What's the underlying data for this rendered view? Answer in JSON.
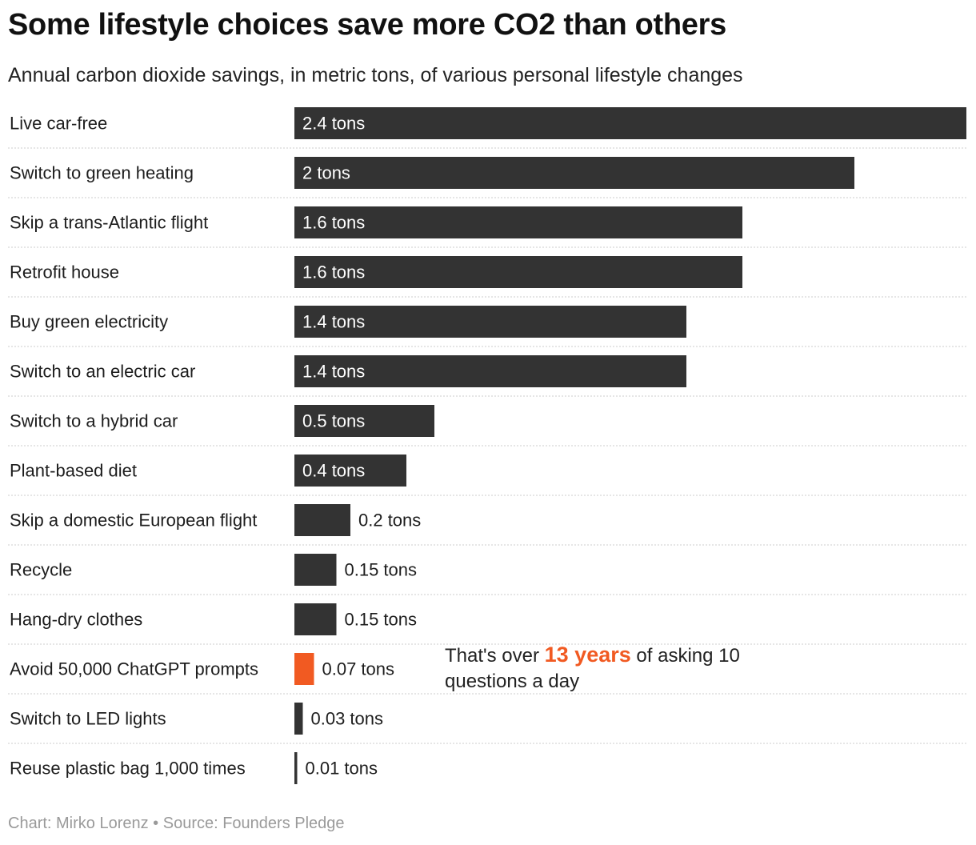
{
  "chart_data": {
    "type": "bar",
    "orientation": "horizontal",
    "title": "Some lifestyle choices save more CO2 than others",
    "subtitle": "Annual carbon dioxide savings, in metric tons, of various personal lifestyle changes",
    "categories": [
      "Live car-free",
      "Switch to green heating",
      "Skip a trans-Atlantic flight",
      "Retrofit house",
      "Buy green electricity",
      "Switch to an electric car",
      "Switch to a hybrid car",
      "Plant-based diet",
      "Skip a domestic European flight",
      "Recycle",
      "Hang-dry clothes",
      "Avoid 50,000 ChatGPT prompts",
      "Switch to LED lights",
      "Reuse plastic bag 1,000 times"
    ],
    "values": [
      2.4,
      2,
      1.6,
      1.6,
      1.4,
      1.4,
      0.5,
      0.4,
      0.2,
      0.15,
      0.15,
      0.07,
      0.03,
      0.01
    ],
    "value_labels": [
      "2.4 tons",
      "2 tons",
      "1.6 tons",
      "1.6 tons",
      "1.4 tons",
      "1.4 tons",
      "0.5 tons",
      "0.4 tons",
      "0.2 tons",
      "0.15 tons",
      "0.15 tons",
      "0.07 tons",
      "0.03 tons",
      "0.01 tons"
    ],
    "highlight_index": 11,
    "xlim": [
      0,
      2.4
    ],
    "unit": "tons",
    "annotation": {
      "before": "That's over ",
      "highlight": "13 years",
      "after": " of asking 10 questions a day"
    },
    "footer": "Chart: Mirko Lorenz • Source: Founders Pledge"
  },
  "colors": {
    "bar": "#333333",
    "highlight": "#f15a22",
    "separator": "#cccccc",
    "label_inside": "#ffffff",
    "label_outside": "#1d1d1d"
  }
}
